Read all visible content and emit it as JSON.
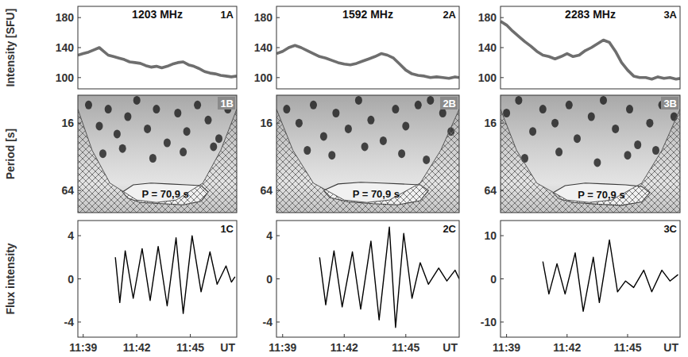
{
  "chart_data": [
    {
      "type": "line",
      "title": "1203 MHz",
      "panel": "1A",
      "ylabel": "Intensity [SFU]",
      "color": "#6e6e6e",
      "tick_labels": "y",
      "xlim": [
        38.7,
        47.6
      ],
      "ylim": [
        85,
        195
      ],
      "yticks": [
        100,
        140,
        180
      ],
      "x": [
        38.7,
        39.0,
        39.3,
        39.6,
        39.9,
        40.1,
        40.4,
        40.7,
        41.0,
        41.3,
        41.6,
        41.9,
        42.2,
        42.5,
        42.8,
        43.1,
        43.4,
        43.7,
        44.0,
        44.3,
        44.6,
        44.9,
        45.2,
        45.5,
        45.8,
        46.1,
        46.4,
        46.7,
        47.0,
        47.3,
        47.6
      ],
      "values": [
        130,
        132,
        134,
        137,
        140,
        136,
        130,
        128,
        126,
        124,
        121,
        120,
        119,
        116,
        114,
        115,
        113,
        115,
        118,
        120,
        121,
        117,
        115,
        112,
        108,
        106,
        105,
        103,
        102,
        101,
        102
      ]
    },
    {
      "type": "line",
      "title": "1592 MHz",
      "panel": "2A",
      "color": "#6e6e6e",
      "tick_labels": "y",
      "xlim": [
        38.7,
        47.6
      ],
      "ylim": [
        85,
        195
      ],
      "yticks": [
        100,
        140,
        180
      ],
      "x": [
        38.7,
        39.0,
        39.3,
        39.6,
        39.9,
        40.2,
        40.5,
        40.8,
        41.1,
        41.4,
        41.7,
        42.0,
        42.3,
        42.6,
        42.9,
        43.2,
        43.5,
        43.8,
        44.1,
        44.4,
        44.7,
        45.0,
        45.3,
        45.6,
        45.9,
        46.2,
        46.5,
        46.8,
        47.1,
        47.4,
        47.6
      ],
      "values": [
        132,
        135,
        140,
        143,
        140,
        136,
        132,
        128,
        126,
        123,
        120,
        118,
        117,
        119,
        122,
        125,
        128,
        132,
        130,
        126,
        118,
        110,
        105,
        103,
        102,
        100,
        101,
        100,
        99,
        101,
        100
      ]
    },
    {
      "type": "line",
      "title": "2283 MHz",
      "panel": "3A",
      "color": "#6e6e6e",
      "tick_labels": "y",
      "xlim": [
        38.7,
        47.6
      ],
      "ylim": [
        85,
        195
      ],
      "yticks": [
        100,
        140,
        180
      ],
      "x": [
        38.7,
        39.0,
        39.3,
        39.6,
        39.9,
        40.2,
        40.5,
        40.8,
        41.1,
        41.4,
        41.7,
        42.0,
        42.3,
        42.6,
        42.9,
        43.2,
        43.5,
        43.8,
        44.1,
        44.4,
        44.7,
        45.0,
        45.3,
        45.6,
        45.9,
        46.2,
        46.5,
        46.8,
        47.1,
        47.4,
        47.6
      ],
      "values": [
        175,
        170,
        162,
        155,
        148,
        142,
        135,
        130,
        128,
        125,
        128,
        132,
        128,
        130,
        136,
        140,
        145,
        150,
        147,
        135,
        120,
        110,
        102,
        100,
        100,
        98,
        101,
        99,
        100,
        98,
        99
      ]
    },
    {
      "type": "wavelet",
      "panel": "1B",
      "ylabel": "Period [s]",
      "annotation": "P = 70,9 s",
      "log": "y",
      "color": "#1a1a1a",
      "tick_labels": "y",
      "xlim": [
        38.7,
        47.6
      ],
      "ylim": [
        9,
        101
      ],
      "yticks": [
        16,
        64
      ],
      "spots": {
        "x": [
          39.3,
          39.9,
          40.4,
          40.9,
          41.5,
          42.0,
          42.6,
          43.1,
          43.7,
          44.3,
          44.8,
          45.4,
          46.0,
          46.6,
          47.1,
          40.1,
          41.2,
          42.9,
          44.6,
          46.3
        ],
        "period": [
          11,
          17,
          12,
          20,
          14,
          10,
          18,
          12,
          24,
          13,
          19,
          11,
          15,
          22,
          12,
          30,
          27,
          33,
          29,
          26
        ]
      },
      "contour": {
        "x": [
          41.2,
          41.8,
          42.8,
          43.8,
          44.8,
          45.6,
          46.0,
          45.6,
          44.6,
          43.4,
          42.2,
          41.5
        ],
        "period": [
          66,
          57,
          55,
          56,
          57,
          58,
          66,
          80,
          86,
          84,
          82,
          75
        ]
      },
      "coi": {
        "x": [
          38.7,
          39.5,
          40.5,
          42.0,
          43.1,
          44.2,
          45.7,
          46.7,
          47.6
        ],
        "period": [
          12,
          28,
          55,
          78,
          82,
          78,
          55,
          28,
          12
        ]
      }
    },
    {
      "type": "wavelet",
      "panel": "2B",
      "annotation": "P = 70,9 s",
      "log": "y",
      "color": "#1a1a1a",
      "tick_labels": "y",
      "xlim": [
        38.7,
        47.6
      ],
      "ylim": [
        9,
        101
      ],
      "yticks": [
        16,
        64
      ],
      "spots": {
        "x": [
          39.2,
          39.8,
          40.5,
          41.0,
          41.6,
          42.2,
          42.7,
          43.3,
          43.9,
          44.5,
          45.0,
          45.6,
          46.2,
          46.8,
          47.2,
          40.2,
          41.4,
          43.0,
          44.8,
          46.0
        ],
        "period": [
          12,
          16,
          11,
          21,
          13,
          18,
          10,
          15,
          23,
          12,
          17,
          11,
          10,
          13,
          19,
          28,
          31,
          26,
          30,
          34
        ]
      },
      "contour": {
        "x": [
          41.0,
          41.7,
          42.8,
          43.8,
          44.8,
          45.7,
          46.1,
          45.7,
          44.6,
          43.4,
          42.2,
          41.3
        ],
        "period": [
          64,
          56,
          54,
          55,
          56,
          57,
          64,
          79,
          86,
          84,
          81,
          74
        ]
      },
      "coi": {
        "x": [
          38.7,
          39.5,
          40.5,
          42.0,
          43.1,
          44.2,
          45.7,
          46.7,
          47.6
        ],
        "period": [
          12,
          28,
          55,
          78,
          82,
          78,
          55,
          28,
          12
        ]
      }
    },
    {
      "type": "wavelet",
      "panel": "3B",
      "annotation": "P = 70,9 s",
      "log": "y",
      "color": "#1a1a1a",
      "tick_labels": "y",
      "xlim": [
        38.7,
        47.6
      ],
      "ylim": [
        9,
        101
      ],
      "yticks": [
        16,
        64
      ],
      "spots": {
        "x": [
          39.0,
          39.6,
          40.3,
          40.8,
          41.4,
          42.1,
          42.5,
          43.2,
          43.8,
          44.4,
          45.1,
          45.5,
          46.1,
          46.7,
          47.3,
          39.9,
          41.6,
          43.5,
          45.0,
          46.4
        ],
        "period": [
          13,
          10,
          19,
          12,
          16,
          11,
          22,
          14,
          10,
          18,
          12,
          25,
          16,
          11,
          14,
          33,
          29,
          36,
          31,
          28
        ]
      },
      "contour": {
        "x": [
          41.3,
          41.9,
          42.9,
          43.9,
          44.9,
          45.7,
          46.1,
          45.7,
          44.7,
          43.5,
          42.3,
          41.6
        ],
        "period": [
          67,
          58,
          55,
          56,
          57,
          59,
          67,
          81,
          87,
          85,
          82,
          76
        ]
      },
      "coi": {
        "x": [
          38.7,
          39.5,
          40.5,
          42.0,
          43.1,
          44.2,
          45.7,
          46.7,
          47.6
        ],
        "period": [
          12,
          28,
          55,
          78,
          82,
          78,
          55,
          28,
          12
        ]
      }
    },
    {
      "type": "line",
      "panel": "1C",
      "ylabel": "Flux intensity",
      "xlabel": "UT",
      "color": "#000000",
      "xlim": [
        38.7,
        47.6
      ],
      "ylim": [
        -5.4,
        5.4
      ],
      "yticks": [
        -4,
        0,
        4
      ],
      "xticks": [
        {
          "value": 39,
          "label": "11:39"
        },
        {
          "value": 42,
          "label": "11:42"
        },
        {
          "value": 45,
          "label": "11:45"
        }
      ],
      "x": [
        40.8,
        41.05,
        41.35,
        41.8,
        42.3,
        42.75,
        43.2,
        43.7,
        44.2,
        44.6,
        45.1,
        45.6,
        46.1,
        46.5,
        47.0,
        47.3,
        47.5
      ],
      "values": [
        2.0,
        -2.2,
        2.6,
        -1.8,
        2.8,
        -2.0,
        3.0,
        -2.5,
        3.8,
        -3.2,
        4.0,
        -1.2,
        2.5,
        -0.5,
        1.2,
        -0.3,
        0.2
      ]
    },
    {
      "type": "line",
      "panel": "2C",
      "xlabel": "UT",
      "color": "#000000",
      "xlim": [
        38.7,
        47.6
      ],
      "ylim": [
        -5.4,
        5.4
      ],
      "yticks": [
        -4,
        0,
        4
      ],
      "xticks": [
        {
          "value": 39,
          "label": "11:39"
        },
        {
          "value": 42,
          "label": "11:42"
        },
        {
          "value": 45,
          "label": "11:45"
        }
      ],
      "x": [
        40.8,
        41.1,
        41.5,
        41.9,
        42.4,
        42.8,
        43.3,
        43.7,
        44.2,
        44.5,
        44.9,
        45.3,
        45.7,
        46.1,
        46.6,
        47.0,
        47.4,
        47.6
      ],
      "values": [
        2.0,
        -2.4,
        2.6,
        -2.6,
        2.5,
        -2.8,
        3.5,
        -3.8,
        4.8,
        -4.5,
        4.2,
        -1.8,
        1.5,
        -0.5,
        1.0,
        -0.2,
        0.8,
        0.0
      ]
    },
    {
      "type": "line",
      "panel": "3C",
      "xlabel": "UT",
      "color": "#000000",
      "xlim": [
        38.7,
        47.6
      ],
      "ylim": [
        -13.5,
        13.5
      ],
      "yticks": [
        -10,
        0,
        10
      ],
      "xticks": [
        {
          "value": 39,
          "label": "11:39"
        },
        {
          "value": 42,
          "label": "11:42"
        },
        {
          "value": 45,
          "label": "11:45"
        }
      ],
      "x": [
        40.8,
        41.1,
        41.5,
        41.9,
        42.4,
        42.8,
        43.3,
        43.6,
        44.1,
        44.5,
        44.9,
        45.3,
        45.8,
        46.2,
        46.7,
        47.1,
        47.5
      ],
      "values": [
        4,
        -3.5,
        3.5,
        -3.5,
        6,
        -7.5,
        5,
        -5.5,
        9,
        -3,
        -0.5,
        -2,
        2,
        -3,
        2,
        -0.5,
        1
      ]
    }
  ]
}
